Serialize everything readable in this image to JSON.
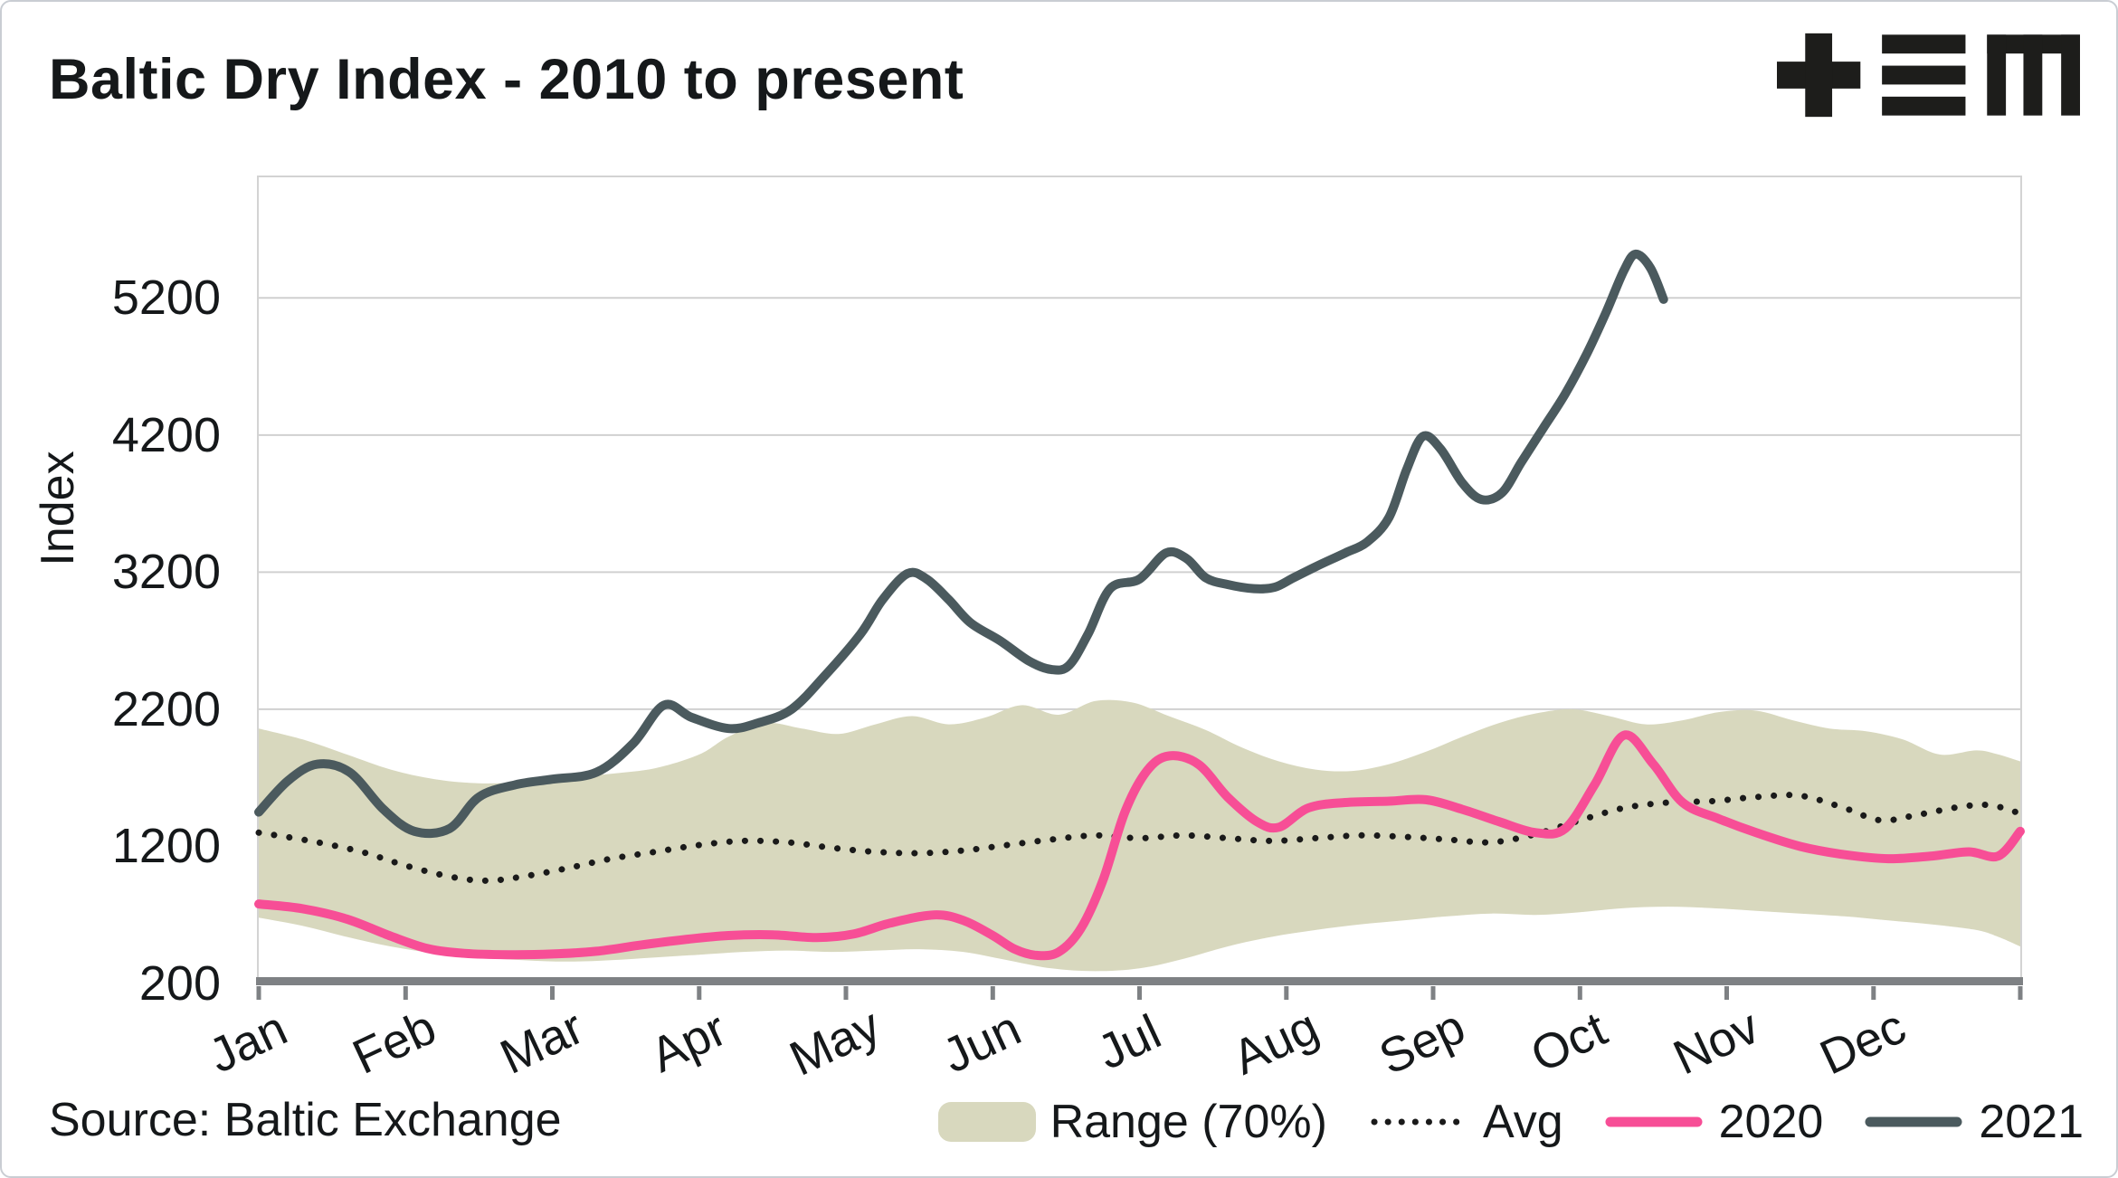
{
  "header": {
    "title": "Baltic Dry Index - 2010 to present",
    "logo": "+≡M"
  },
  "footer": {
    "source": "Source: Baltic Exchange"
  },
  "colors": {
    "band": "#d8d8be",
    "avg": "#1a1a1a",
    "y2020": "#f74e96",
    "y2021": "#4b5a5e",
    "grid": "#d0d0d0",
    "axis": "#7e8184",
    "text": "#15181a"
  },
  "legend": {
    "items": [
      {
        "label": "Range (70%)",
        "type": "band"
      },
      {
        "label": "Avg",
        "type": "dotted"
      },
      {
        "label": "2020",
        "type": "line"
      },
      {
        "label": "2021",
        "type": "line"
      }
    ]
  },
  "chart_data": {
    "type": "line",
    "title": "Baltic Dry Index - 2010 to present",
    "xlabel": "",
    "ylabel": "Index",
    "xlim": [
      0,
      12
    ],
    "ylim": [
      200,
      6080
    ],
    "yticks": [
      200,
      1200,
      2200,
      3200,
      4200,
      5200
    ],
    "x_labels": [
      "Jan",
      "Feb",
      "Mar",
      "Apr",
      "May",
      "Jun",
      "Jul",
      "Aug",
      "Sep",
      "Oct",
      "Nov",
      "Dec"
    ],
    "grid": true,
    "legend_position": "bottom",
    "band": {
      "name": "Range (70%)",
      "upper": {
        "x": [
          0,
          0.3,
          0.6,
          0.9,
          1.2,
          1.5,
          1.8,
          2.1,
          2.4,
          2.7,
          3.0,
          3.2,
          3.45,
          3.7,
          3.95,
          4.2,
          4.45,
          4.7,
          4.95,
          5.2,
          5.45,
          5.7,
          5.95,
          6.2,
          6.45,
          6.7,
          6.95,
          7.2,
          7.45,
          7.7,
          7.95,
          8.2,
          8.45,
          8.7,
          8.95,
          9.2,
          9.45,
          9.7,
          9.95,
          10.2,
          10.45,
          10.7,
          10.95,
          11.2,
          11.45,
          11.7,
          11.85,
          12.0
        ],
        "y": [
          2060,
          1980,
          1870,
          1760,
          1690,
          1660,
          1670,
          1700,
          1730,
          1770,
          1870,
          2000,
          2100,
          2060,
          2020,
          2090,
          2150,
          2090,
          2140,
          2230,
          2160,
          2260,
          2250,
          2150,
          2050,
          1920,
          1820,
          1760,
          1750,
          1800,
          1890,
          2000,
          2100,
          2170,
          2200,
          2150,
          2090,
          2120,
          2180,
          2190,
          2120,
          2060,
          2040,
          1980,
          1870,
          1900,
          1870,
          1820
        ]
      },
      "lower": {
        "x": [
          0,
          0.3,
          0.6,
          0.9,
          1.2,
          1.5,
          1.8,
          2.1,
          2.4,
          2.7,
          3.0,
          3.3,
          3.6,
          3.9,
          4.2,
          4.5,
          4.8,
          5.1,
          5.4,
          5.7,
          6.0,
          6.3,
          6.6,
          6.9,
          7.2,
          7.5,
          7.8,
          8.1,
          8.4,
          8.7,
          9.0,
          9.3,
          9.6,
          9.9,
          10.2,
          10.5,
          10.8,
          11.1,
          11.4,
          11.7,
          11.85,
          12.0
        ],
        "y": [
          680,
          620,
          540,
          470,
          420,
          390,
          370,
          360,
          370,
          390,
          410,
          430,
          440,
          430,
          440,
          450,
          430,
          370,
          310,
          290,
          310,
          380,
          470,
          540,
          590,
          630,
          660,
          690,
          710,
          700,
          720,
          750,
          760,
          750,
          730,
          710,
          690,
          660,
          630,
          590,
          540,
          470
        ]
      }
    },
    "series": [
      {
        "name": "Avg",
        "style": "dotted",
        "color": "#1a1a1a",
        "x": [
          0,
          0.35,
          0.7,
          1.0,
          1.3,
          1.55,
          1.8,
          2.1,
          2.4,
          2.7,
          3.0,
          3.3,
          3.6,
          3.9,
          4.2,
          4.5,
          4.8,
          5.1,
          5.4,
          5.7,
          6.0,
          6.3,
          6.6,
          6.9,
          7.2,
          7.5,
          7.8,
          8.1,
          8.4,
          8.7,
          9.0,
          9.3,
          9.6,
          9.9,
          10.2,
          10.5,
          10.8,
          11.05,
          11.3,
          11.6,
          11.8,
          12.0
        ],
        "y": [
          1300,
          1240,
          1160,
          1060,
          980,
          950,
          980,
          1040,
          1110,
          1160,
          1210,
          1240,
          1230,
          1190,
          1160,
          1150,
          1170,
          1210,
          1250,
          1280,
          1260,
          1280,
          1260,
          1240,
          1260,
          1280,
          1270,
          1250,
          1230,
          1290,
          1390,
          1480,
          1520,
          1530,
          1560,
          1570,
          1480,
          1390,
          1430,
          1490,
          1500,
          1440
        ]
      },
      {
        "name": "2020",
        "style": "solid",
        "color": "#f74e96",
        "x": [
          0,
          0.3,
          0.6,
          0.9,
          1.15,
          1.4,
          1.7,
          2.0,
          2.3,
          2.6,
          2.9,
          3.2,
          3.5,
          3.8,
          4.05,
          4.3,
          4.6,
          4.8,
          5.0,
          5.15,
          5.3,
          5.45,
          5.6,
          5.75,
          5.9,
          6.05,
          6.2,
          6.4,
          6.6,
          6.8,
          6.95,
          7.15,
          7.4,
          7.7,
          7.95,
          8.2,
          8.45,
          8.7,
          8.9,
          9.1,
          9.3,
          9.5,
          9.7,
          9.95,
          10.2,
          10.5,
          10.8,
          11.1,
          11.4,
          11.65,
          11.85,
          12.0
        ],
        "y": [
          780,
          745,
          670,
          545,
          455,
          420,
          410,
          415,
          435,
          480,
          520,
          550,
          555,
          535,
          560,
          640,
          700,
          660,
          550,
          450,
          405,
          430,
          600,
          950,
          1450,
          1750,
          1860,
          1800,
          1560,
          1380,
          1340,
          1480,
          1520,
          1530,
          1540,
          1470,
          1380,
          1300,
          1330,
          1650,
          2010,
          1800,
          1520,
          1400,
          1300,
          1200,
          1140,
          1110,
          1130,
          1160,
          1130,
          1310
        ]
      },
      {
        "name": "2021",
        "style": "solid",
        "color": "#4b5a5e",
        "x": [
          0,
          0.2,
          0.4,
          0.62,
          0.85,
          1.06,
          1.3,
          1.5,
          1.75,
          2.0,
          2.3,
          2.55,
          2.76,
          2.95,
          3.2,
          3.4,
          3.63,
          3.86,
          4.1,
          4.25,
          4.42,
          4.55,
          4.7,
          4.85,
          5.05,
          5.25,
          5.4,
          5.52,
          5.65,
          5.8,
          6.0,
          6.18,
          6.32,
          6.45,
          6.6,
          6.78,
          6.92,
          7.05,
          7.22,
          7.4,
          7.55,
          7.7,
          7.82,
          7.93,
          8.05,
          8.2,
          8.33,
          8.47,
          8.6,
          8.75,
          8.9,
          9.05,
          9.18,
          9.3,
          9.38,
          9.48,
          9.57
        ],
        "y": [
          1450,
          1680,
          1800,
          1740,
          1470,
          1310,
          1330,
          1560,
          1650,
          1690,
          1740,
          1950,
          2230,
          2140,
          2060,
          2100,
          2200,
          2450,
          2750,
          3000,
          3190,
          3150,
          3000,
          2830,
          2700,
          2550,
          2490,
          2520,
          2750,
          3080,
          3150,
          3340,
          3300,
          3160,
          3110,
          3080,
          3090,
          3160,
          3250,
          3340,
          3420,
          3600,
          3950,
          4190,
          4100,
          3850,
          3730,
          3780,
          4000,
          4250,
          4500,
          4800,
          5100,
          5400,
          5520,
          5420,
          5190
        ]
      }
    ]
  }
}
